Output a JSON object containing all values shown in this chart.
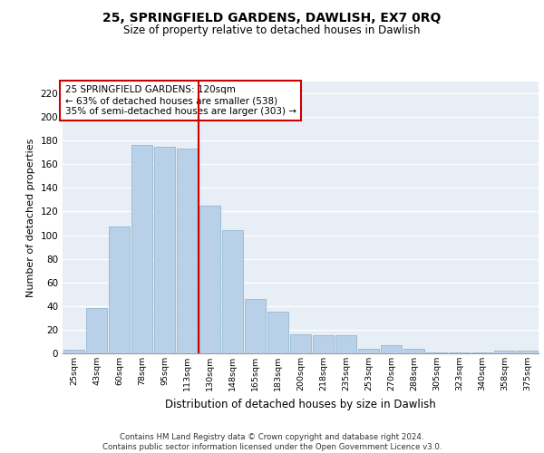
{
  "title": "25, SPRINGFIELD GARDENS, DAWLISH, EX7 0RQ",
  "subtitle": "Size of property relative to detached houses in Dawlish",
  "xlabel": "Distribution of detached houses by size in Dawlish",
  "ylabel": "Number of detached properties",
  "categories": [
    "25sqm",
    "43sqm",
    "60sqm",
    "78sqm",
    "95sqm",
    "113sqm",
    "130sqm",
    "148sqm",
    "165sqm",
    "183sqm",
    "200sqm",
    "218sqm",
    "235sqm",
    "253sqm",
    "270sqm",
    "288sqm",
    "305sqm",
    "323sqm",
    "340sqm",
    "358sqm",
    "375sqm"
  ],
  "values": [
    3,
    38,
    107,
    176,
    175,
    173,
    125,
    104,
    46,
    35,
    16,
    15,
    15,
    4,
    7,
    4,
    1,
    1,
    1,
    2,
    2
  ],
  "bar_color": "#b8d0e8",
  "bar_edge_color": "#8ab0d0",
  "property_line_color": "#cc0000",
  "annotation_text": "25 SPRINGFIELD GARDENS: 120sqm\n← 63% of detached houses are smaller (538)\n35% of semi-detached houses are larger (303) →",
  "annotation_box_color": "#ffffff",
  "annotation_box_edge": "#cc0000",
  "ylim": [
    0,
    230
  ],
  "yticks": [
    0,
    20,
    40,
    60,
    80,
    100,
    120,
    140,
    160,
    180,
    200,
    220
  ],
  "background_color": "#e8eef5",
  "grid_color": "#ffffff",
  "footer_line1": "Contains HM Land Registry data © Crown copyright and database right 2024.",
  "footer_line2": "Contains public sector information licensed under the Open Government Licence v3.0."
}
